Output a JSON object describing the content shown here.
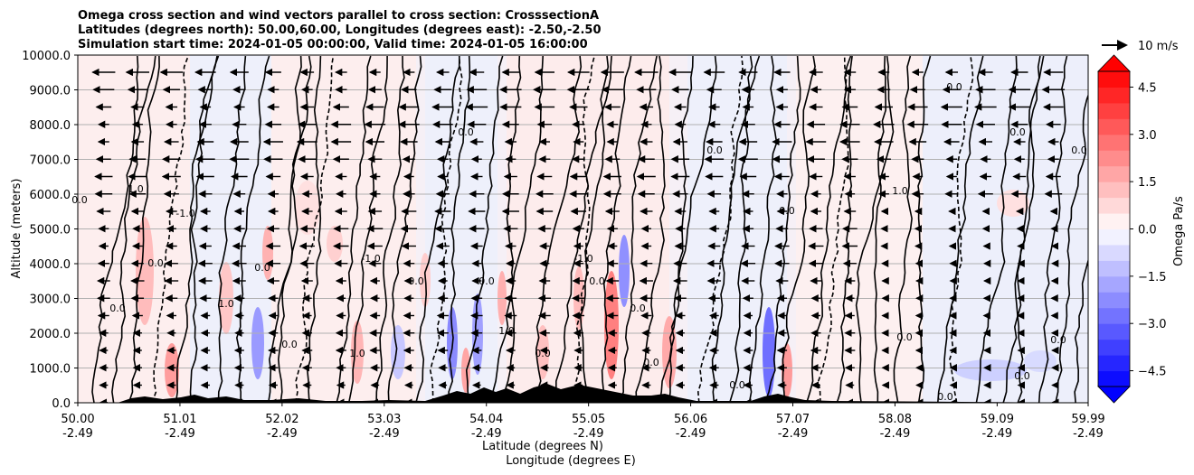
{
  "chart_data": {
    "type": "heatmap",
    "title": [
      "Omega cross section and wind vectors parallel to cross section: CrosssectionA",
      "Latitudes (degrees north): 50.00,60.00, Longitudes (degrees east): -2.50,-2.50",
      "Simulation start time: 2024-01-05 00:00:00, Valid time: 2024-01-05 16:00:00"
    ],
    "xlabel": [
      "Latitude (degrees N)",
      "Longitude (degrees E)"
    ],
    "ylabel": "Altitude (meters)",
    "ylim": [
      0,
      10000
    ],
    "xlim": [
      50.0,
      59.99
    ],
    "y_ticks": [
      0,
      1000,
      2000,
      3000,
      4000,
      5000,
      6000,
      7000,
      8000,
      9000,
      10000
    ],
    "y_tick_labels": [
      "0.0",
      "1000.0",
      "2000.0",
      "3000.0",
      "4000.0",
      "5000.0",
      "6000.0",
      "7000.0",
      "8000.0",
      "9000.0",
      "10000.0"
    ],
    "x_ticks": [
      50.0,
      51.01,
      52.02,
      53.03,
      54.04,
      55.05,
      56.06,
      57.07,
      58.08,
      59.09,
      59.99
    ],
    "x_tick_labels_lat": [
      "50.00",
      "51.01",
      "52.02",
      "53.03",
      "54.04",
      "55.05",
      "56.06",
      "57.07",
      "58.08",
      "59.09",
      "59.99"
    ],
    "x_tick_labels_lon": [
      "-2.49",
      "-2.49",
      "-2.49",
      "-2.49",
      "-2.49",
      "-2.49",
      "-2.49",
      "-2.49",
      "-2.49",
      "-2.49",
      "-2.49"
    ],
    "grid": "horizontal",
    "colorbar": {
      "label": "Omega Pa/s",
      "range": [
        -5.0,
        5.0
      ],
      "extend": "both",
      "levels": 20,
      "ticks": [
        4.5,
        3.0,
        1.5,
        0.0,
        -1.5,
        -3.0,
        -4.5
      ],
      "tick_labels": [
        "4.5",
        "3.0",
        "1.5",
        "0.0",
        "−1.5",
        "−3.0",
        "−4.5"
      ],
      "colormap": "bwr",
      "colors": {
        "neg": "#0000ff",
        "zero": "#ffffff",
        "pos": "#ff0000"
      }
    },
    "contour_levels": [
      -1.0,
      0.0,
      1.0
    ],
    "contour_labels": [
      "0.0",
      "1.0",
      "-1.0",
      "0.0",
      "1.0",
      "0.0",
      "0.0",
      "0.0",
      "-1.0",
      "1.0",
      "0.0",
      "0.0",
      "0.0",
      "1.0",
      "0.0",
      "-1.0",
      "0.0",
      "0.0",
      "0.0",
      "0.0",
      "0.0",
      "1.0",
      "0.0",
      "0.0",
      "0.0",
      "0.0",
      "0.0",
      "0.0",
      "0.0",
      "0.0"
    ],
    "quiver_key": {
      "label": "10 m/s",
      "speed": 10
    },
    "wind_direction": "toward south (decreasing latitude)",
    "terrain_color": "#000000"
  }
}
